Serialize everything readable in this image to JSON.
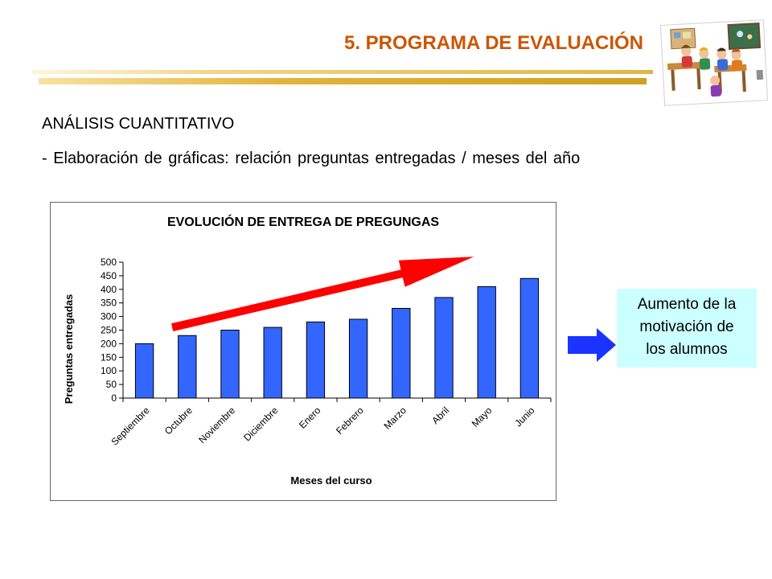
{
  "slide": {
    "title": "5. PROGRAMA DE EVALUACIÓN",
    "section_heading": "ANÁLISIS CUANTITATIVO",
    "bullet": "- Elaboración de gráficas: relación preguntas entregadas / meses del año",
    "clipart_icon": "classroom-students-clipart"
  },
  "result": {
    "arrow_icon": "arrow-right-icon",
    "lines": [
      "Aumento de la",
      "motivación de",
      "los alumnos"
    ],
    "box_color": "#ccffff",
    "arrow_color": "#1a33ff"
  },
  "chart_data": {
    "type": "bar",
    "title": "EVOLUCIÓN DE ENTREGA DE PREGUNGAS",
    "xlabel": "Meses del curso",
    "ylabel": "Preguntas entregadas",
    "categories": [
      "Septiembre",
      "Octubre",
      "Noviembre",
      "Diciembre",
      "Enero",
      "Febrero",
      "Marzo",
      "Abril",
      "Mayo",
      "Junio"
    ],
    "values": [
      200,
      230,
      250,
      260,
      280,
      290,
      330,
      370,
      410,
      440
    ],
    "ylim": [
      0,
      500
    ],
    "yticks": [
      0,
      50,
      100,
      150,
      200,
      250,
      300,
      350,
      400,
      450,
      500
    ],
    "grid": false,
    "legend": "none",
    "bar_color": "#3366ff",
    "trend_arrow_color": "#ff0000"
  }
}
